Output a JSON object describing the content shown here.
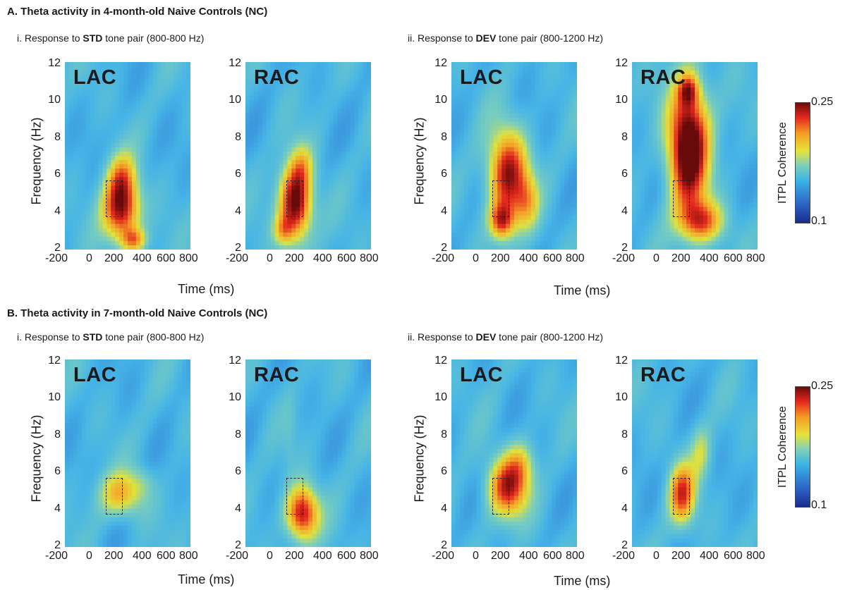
{
  "sectionA": {
    "title": "A. Theta activity in 4-month-old Naive Controls (NC)",
    "std_prefix": "i. Response to ",
    "std_bold": "STD",
    "std_suffix": " tone pair (800-800 Hz)",
    "dev_prefix": "ii. Response to ",
    "dev_bold": "DEV",
    "dev_suffix": " tone pair (800-1200 Hz)"
  },
  "sectionB": {
    "title": "B. Theta activity in 7-month-old Naive Controls (NC)",
    "std_prefix": "i. Response to ",
    "std_bold": "STD",
    "std_suffix": " tone pair (800-800 Hz)",
    "dev_prefix": "ii. Response to ",
    "dev_bold": "DEV",
    "dev_suffix": " tone pair (800-1200 Hz)"
  },
  "labels": {
    "lac": "LAC",
    "rac": "RAC"
  },
  "axes": {
    "ylabel": "Frequency (Hz)",
    "xlabel": "Time (ms)",
    "yticks": [
      "12",
      "10",
      "8",
      "6",
      "4",
      "2"
    ],
    "xticks": [
      "-200",
      "0",
      "200",
      "400",
      "600",
      "800"
    ]
  },
  "colorbar": {
    "label": "ITPL Coherence",
    "max": "0.25",
    "min": "0.1"
  },
  "chart_data": [
    {
      "type": "heatmap",
      "title": "4-month STD LAC",
      "hot_spot_time_ms": 200,
      "hot_spot_freq_hz": 4.5,
      "peak": "high"
    },
    {
      "type": "heatmap",
      "title": "4-month STD RAC",
      "hot_spot_time_ms": 180,
      "hot_spot_freq_hz": 4.5,
      "peak": "very high"
    },
    {
      "type": "heatmap",
      "title": "4-month DEV LAC",
      "hot_spot_time_ms": 220,
      "hot_spot_freq_hz": 6.5,
      "peak": "high"
    },
    {
      "type": "heatmap",
      "title": "4-month DEV RAC",
      "hot_spot_time_ms": 220,
      "hot_spot_freq_hz": 7,
      "peak": "very high"
    },
    {
      "type": "heatmap",
      "title": "7-month STD LAC",
      "hot_spot_time_ms": 200,
      "hot_spot_freq_hz": 5,
      "peak": "moderate"
    },
    {
      "type": "heatmap",
      "title": "7-month STD RAC",
      "hot_spot_time_ms": 220,
      "hot_spot_freq_hz": 4,
      "peak": "high"
    },
    {
      "type": "heatmap",
      "title": "7-month DEV LAC",
      "hot_spot_time_ms": 200,
      "hot_spot_freq_hz": 6,
      "peak": "high"
    },
    {
      "type": "heatmap",
      "title": "7-month DEV RAC",
      "hot_spot_time_ms": 200,
      "hot_spot_freq_hz": 5.5,
      "peak": "moderate"
    }
  ]
}
